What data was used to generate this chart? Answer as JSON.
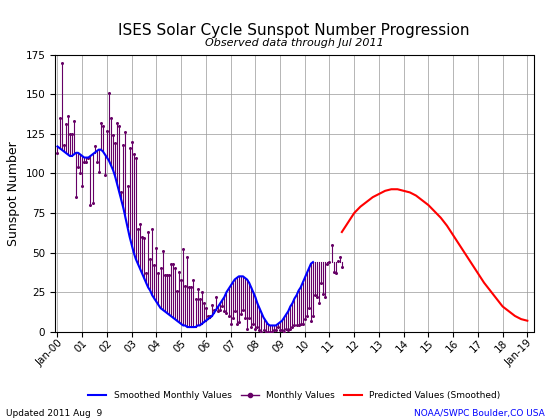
{
  "title": "ISES Solar Cycle Sunspot Number Progression",
  "subtitle": "Observed data through Jul 2011",
  "ylabel": "Sunspot Number",
  "footer_left": "Updated 2011 Aug  9",
  "footer_right": "NOAA/SWPC Boulder,CO USA",
  "title_fontsize": 11,
  "subtitle_fontsize": 8,
  "ylabel_fontsize": 9,
  "tick_fontsize": 7.5,
  "ylim": [
    0,
    175
  ],
  "yticks": [
    0,
    25,
    50,
    75,
    100,
    125,
    150,
    175
  ],
  "background_color": "#ffffff",
  "grid_color": "#999999",
  "smoothed_color": "#0000ff",
  "monthly_color": "#660066",
  "predicted_color": "#ff0000",
  "smoothed_monthly_values": [
    117,
    116,
    115,
    114,
    113,
    112,
    111,
    111,
    112,
    113,
    113,
    112,
    111,
    110,
    110,
    110,
    111,
    112,
    113,
    114,
    115,
    115,
    114,
    112,
    110,
    108,
    105,
    102,
    98,
    93,
    88,
    83,
    78,
    72,
    66,
    60,
    55,
    50,
    46,
    43,
    40,
    37,
    34,
    31,
    28,
    26,
    23,
    21,
    19,
    17,
    15,
    14,
    13,
    12,
    11,
    10,
    9,
    8,
    7,
    6,
    5,
    4,
    4,
    3,
    3,
    3,
    3,
    3,
    4,
    4,
    5,
    6,
    7,
    8,
    9,
    10,
    12,
    14,
    16,
    18,
    20,
    22,
    25,
    27,
    29,
    31,
    33,
    34,
    35,
    35,
    35,
    34,
    33,
    31,
    28,
    25,
    22,
    18,
    15,
    12,
    9,
    7,
    5,
    4,
    4,
    4,
    4,
    5,
    6,
    7,
    9,
    11,
    13,
    16,
    18,
    21,
    23,
    26,
    28,
    31,
    34,
    37,
    40,
    43,
    44
  ],
  "smoothed_start_year": 2000.0,
  "monthly_values": [
    [
      2000.0,
      113
    ],
    [
      2000.083,
      135
    ],
    [
      2000.167,
      170
    ],
    [
      2000.25,
      118
    ],
    [
      2000.333,
      131
    ],
    [
      2000.417,
      136
    ],
    [
      2000.5,
      125
    ],
    [
      2000.583,
      125
    ],
    [
      2000.667,
      133
    ],
    [
      2000.75,
      85
    ],
    [
      2000.833,
      104
    ],
    [
      2000.917,
      100
    ],
    [
      2001.0,
      92
    ],
    [
      2001.083,
      107
    ],
    [
      2001.167,
      107
    ],
    [
      2001.25,
      110
    ],
    [
      2001.333,
      80
    ],
    [
      2001.417,
      81
    ],
    [
      2001.5,
      117
    ],
    [
      2001.583,
      107
    ],
    [
      2001.667,
      101
    ],
    [
      2001.75,
      132
    ],
    [
      2001.833,
      130
    ],
    [
      2001.917,
      99
    ],
    [
      2002.0,
      127
    ],
    [
      2002.083,
      151
    ],
    [
      2002.167,
      135
    ],
    [
      2002.25,
      124
    ],
    [
      2002.333,
      119
    ],
    [
      2002.417,
      132
    ],
    [
      2002.5,
      130
    ],
    [
      2002.583,
      88
    ],
    [
      2002.667,
      118
    ],
    [
      2002.75,
      126
    ],
    [
      2002.833,
      92
    ],
    [
      2002.917,
      116
    ],
    [
      2003.0,
      120
    ],
    [
      2003.083,
      112
    ],
    [
      2003.167,
      110
    ],
    [
      2003.25,
      65
    ],
    [
      2003.333,
      68
    ],
    [
      2003.417,
      60
    ],
    [
      2003.5,
      59
    ],
    [
      2003.583,
      37
    ],
    [
      2003.667,
      63
    ],
    [
      2003.75,
      46
    ],
    [
      2003.833,
      65
    ],
    [
      2003.917,
      42
    ],
    [
      2004.0,
      53
    ],
    [
      2004.083,
      37
    ],
    [
      2004.167,
      40
    ],
    [
      2004.25,
      51
    ],
    [
      2004.333,
      36
    ],
    [
      2004.417,
      36
    ],
    [
      2004.5,
      36
    ],
    [
      2004.583,
      43
    ],
    [
      2004.667,
      43
    ],
    [
      2004.75,
      40
    ],
    [
      2004.833,
      26
    ],
    [
      2004.917,
      38
    ],
    [
      2005.0,
      33
    ],
    [
      2005.083,
      52
    ],
    [
      2005.167,
      29
    ],
    [
      2005.25,
      47
    ],
    [
      2005.333,
      28
    ],
    [
      2005.417,
      28
    ],
    [
      2005.5,
      33
    ],
    [
      2005.583,
      21
    ],
    [
      2005.667,
      27
    ],
    [
      2005.75,
      21
    ],
    [
      2005.833,
      25
    ],
    [
      2005.917,
      18
    ],
    [
      2006.0,
      15
    ],
    [
      2006.083,
      10
    ],
    [
      2006.167,
      10
    ],
    [
      2006.25,
      17
    ],
    [
      2006.333,
      14
    ],
    [
      2006.417,
      22
    ],
    [
      2006.5,
      13
    ],
    [
      2006.583,
      14
    ],
    [
      2006.667,
      16
    ],
    [
      2006.75,
      13
    ],
    [
      2006.833,
      12
    ],
    [
      2006.917,
      10
    ],
    [
      2007.0,
      5
    ],
    [
      2007.083,
      9
    ],
    [
      2007.167,
      13
    ],
    [
      2007.25,
      5
    ],
    [
      2007.333,
      6
    ],
    [
      2007.417,
      11
    ],
    [
      2007.5,
      14
    ],
    [
      2007.583,
      9
    ],
    [
      2007.667,
      2
    ],
    [
      2007.75,
      9
    ],
    [
      2007.833,
      3
    ],
    [
      2007.917,
      5
    ],
    [
      2008.0,
      2
    ],
    [
      2008.083,
      3
    ],
    [
      2008.167,
      1
    ],
    [
      2008.25,
      0
    ],
    [
      2008.333,
      1
    ],
    [
      2008.417,
      0
    ],
    [
      2008.5,
      0
    ],
    [
      2008.583,
      0
    ],
    [
      2008.667,
      0
    ],
    [
      2008.75,
      1
    ],
    [
      2008.833,
      1
    ],
    [
      2008.917,
      3
    ],
    [
      2009.0,
      1
    ],
    [
      2009.083,
      1
    ],
    [
      2009.167,
      0
    ],
    [
      2009.25,
      2
    ],
    [
      2009.333,
      1
    ],
    [
      2009.417,
      2
    ],
    [
      2009.5,
      3
    ],
    [
      2009.583,
      4
    ],
    [
      2009.667,
      4
    ],
    [
      2009.75,
      4
    ],
    [
      2009.833,
      5
    ],
    [
      2009.917,
      5
    ],
    [
      2010.0,
      8
    ],
    [
      2010.083,
      10
    ],
    [
      2010.167,
      15
    ],
    [
      2010.25,
      7
    ],
    [
      2010.333,
      10
    ],
    [
      2010.417,
      23
    ],
    [
      2010.5,
      22
    ],
    [
      2010.583,
      18
    ],
    [
      2010.667,
      31
    ],
    [
      2010.75,
      24
    ],
    [
      2010.833,
      22
    ],
    [
      2010.917,
      43
    ],
    [
      2011.0,
      44
    ],
    [
      2011.083,
      55
    ],
    [
      2011.167,
      38
    ],
    [
      2011.25,
      37
    ],
    [
      2011.333,
      45
    ],
    [
      2011.417,
      47
    ],
    [
      2011.5,
      41
    ]
  ],
  "predicted_values": [
    [
      2011.5,
      63
    ],
    [
      2011.667,
      67
    ],
    [
      2011.833,
      71
    ],
    [
      2012.0,
      75
    ],
    [
      2012.25,
      79
    ],
    [
      2012.5,
      82
    ],
    [
      2012.75,
      85
    ],
    [
      2013.0,
      87
    ],
    [
      2013.25,
      89
    ],
    [
      2013.5,
      90
    ],
    [
      2013.75,
      90
    ],
    [
      2014.0,
      89
    ],
    [
      2014.25,
      88
    ],
    [
      2014.5,
      86
    ],
    [
      2014.75,
      83
    ],
    [
      2015.0,
      80
    ],
    [
      2015.25,
      76
    ],
    [
      2015.5,
      72
    ],
    [
      2015.75,
      67
    ],
    [
      2016.0,
      61
    ],
    [
      2016.25,
      55
    ],
    [
      2016.5,
      49
    ],
    [
      2016.75,
      43
    ],
    [
      2017.0,
      37
    ],
    [
      2017.25,
      31
    ],
    [
      2017.5,
      26
    ],
    [
      2017.75,
      21
    ],
    [
      2018.0,
      16
    ],
    [
      2018.25,
      13
    ],
    [
      2018.5,
      10
    ],
    [
      2018.75,
      8
    ],
    [
      2019.0,
      7
    ]
  ],
  "xtick_positions": [
    2000,
    2001,
    2002,
    2003,
    2004,
    2005,
    2006,
    2007,
    2008,
    2009,
    2010,
    2011,
    2012,
    2013,
    2014,
    2015,
    2016,
    2017,
    2018,
    2019
  ],
  "xtick_labels": [
    "Jan-00",
    "01",
    "02",
    "03",
    "04",
    "05",
    "06",
    "07",
    "08",
    "09",
    "10",
    "11",
    "12",
    "13",
    "14",
    "15",
    "16",
    "17",
    "18",
    "Jan-19"
  ],
  "xlim": [
    1999.9,
    2019.25
  ]
}
